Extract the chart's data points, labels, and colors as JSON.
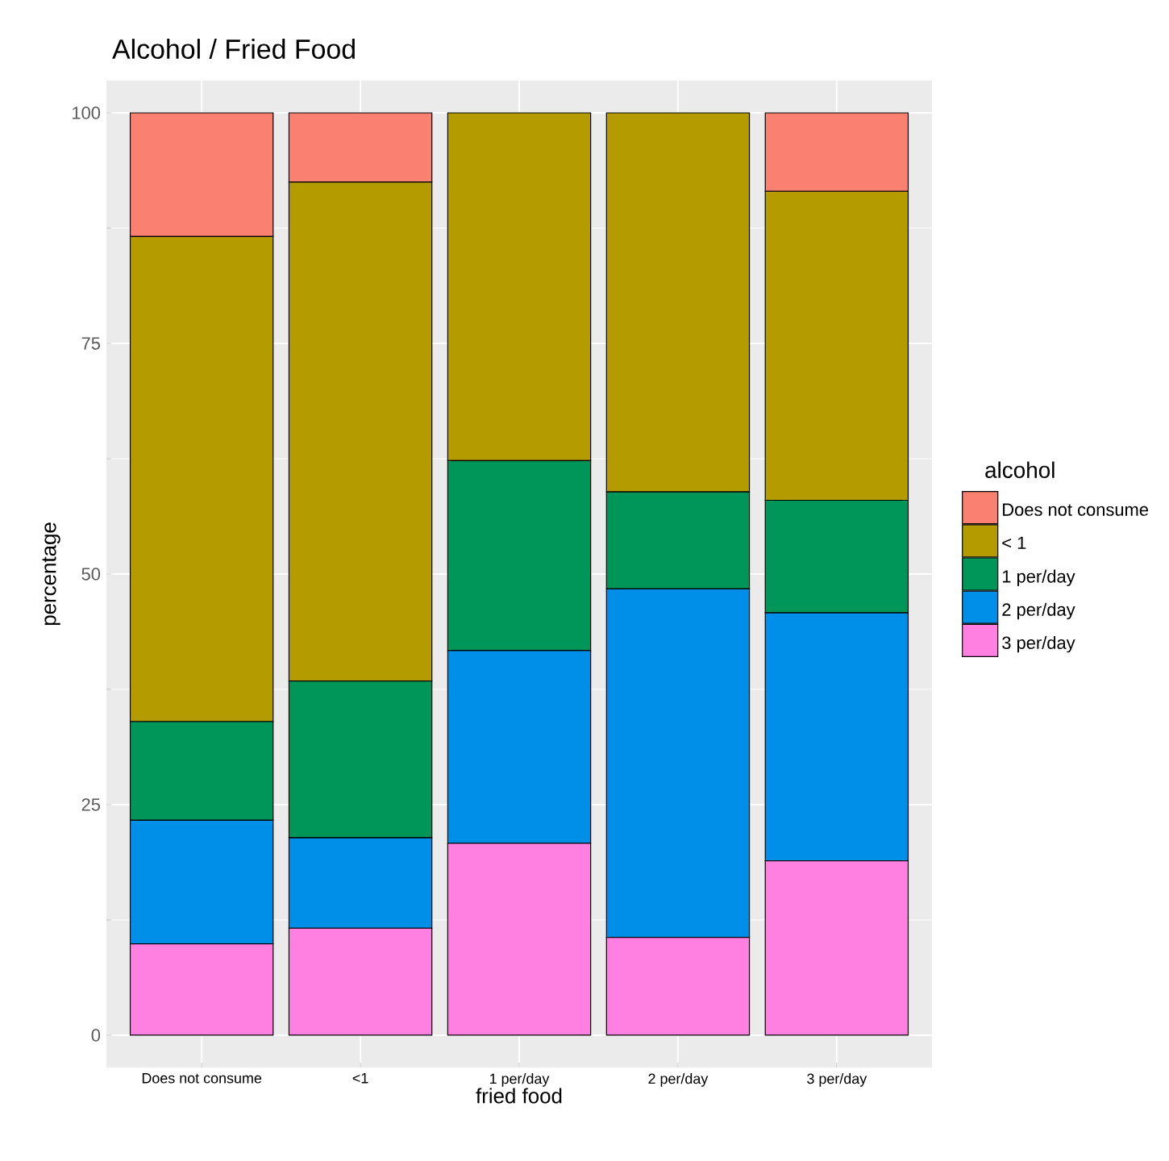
{
  "chart_data": {
    "type": "bar",
    "stacked": true,
    "title": "Alcohol / Fried Food",
    "xlabel": "fried food",
    "ylabel": "percentage",
    "legend_title": "alcohol",
    "legend": "right",
    "grid": true,
    "categories": [
      "Does not consume",
      "<1",
      "1 per/day",
      "2 per/day",
      "3 per/day"
    ],
    "ylim": [
      -3.5,
      103.5
    ],
    "yticks": [
      0,
      25,
      50,
      75,
      100
    ],
    "series": [
      {
        "name": "3 per/day",
        "color": "#FF80E0",
        "values": [
          9.9,
          11.6,
          20.8,
          10.6,
          18.9
        ]
      },
      {
        "name": "2 per/day",
        "color": "#008FE8",
        "values": [
          13.4,
          9.8,
          20.9,
          37.8,
          26.9
        ]
      },
      {
        "name": "1 per/day",
        "color": "#00965A",
        "values": [
          10.7,
          17.0,
          20.6,
          10.5,
          12.2
        ]
      },
      {
        "name": "< 1",
        "color": "#B39B00",
        "values": [
          52.6,
          54.1,
          37.7,
          41.1,
          33.5
        ]
      },
      {
        "name": "Does not consume",
        "color": "#FA8072",
        "values": [
          13.4,
          7.5,
          null,
          null,
          8.5
        ]
      }
    ]
  }
}
